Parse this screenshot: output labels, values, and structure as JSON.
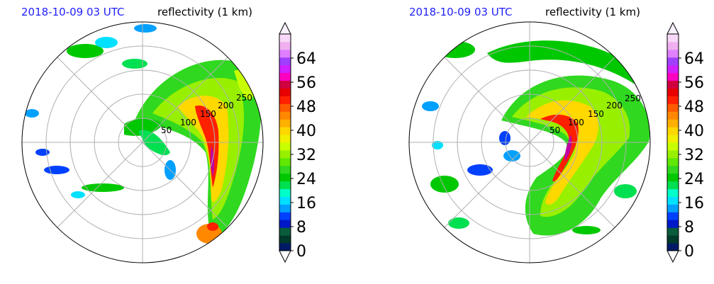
{
  "panels": [
    {
      "time_label": "2018-10-09 03 UTC",
      "field_label": "reflectivity (1 km)",
      "ring_labels": [
        "50",
        "100",
        "150",
        "200",
        "250"
      ]
    },
    {
      "time_label": "2018-10-09 03 UTC",
      "field_label": "reflectivity (1 km)",
      "ring_labels": [
        "50",
        "100",
        "150",
        "200",
        "250"
      ]
    }
  ],
  "colorbar": {
    "ticks": [
      "0",
      "8",
      "16",
      "24",
      "32",
      "40",
      "48",
      "56",
      "64"
    ],
    "colors": [
      "#001a66",
      "#003a2a",
      "#0a5c3c",
      "#0018c8",
      "#0040ff",
      "#00a0ff",
      "#00e0ff",
      "#00ffc8",
      "#00e050",
      "#00c800",
      "#30d820",
      "#60e800",
      "#98f000",
      "#c8ff00",
      "#f0f000",
      "#ffd800",
      "#ffb000",
      "#ff8800",
      "#ff5a00",
      "#ff2000",
      "#e80000",
      "#d00040",
      "#ff00c0",
      "#d020ff",
      "#a040ff",
      "#e080ff",
      "#f0b0f0",
      "#f8d8f8"
    ]
  },
  "chart_data": [
    {
      "type": "heatmap",
      "projection": "polar",
      "title": "2018-10-09 03 UTC  reflectivity (1 km)",
      "range_rings": [
        50,
        100,
        150,
        200,
        250
      ],
      "colorbar_label": "",
      "colorbar_ticks": [
        0,
        8,
        16,
        24,
        32,
        40,
        48,
        56,
        64
      ],
      "colorbar_range": [
        0,
        72
      ],
      "grid": true
    },
    {
      "type": "heatmap",
      "projection": "polar",
      "title": "2018-10-09 03 UTC  reflectivity (1 km)",
      "range_rings": [
        50,
        100,
        150,
        200,
        250
      ],
      "colorbar_label": "",
      "colorbar_ticks": [
        0,
        8,
        16,
        24,
        32,
        40,
        48,
        56,
        64
      ],
      "colorbar_range": [
        0,
        72
      ],
      "grid": true
    }
  ]
}
